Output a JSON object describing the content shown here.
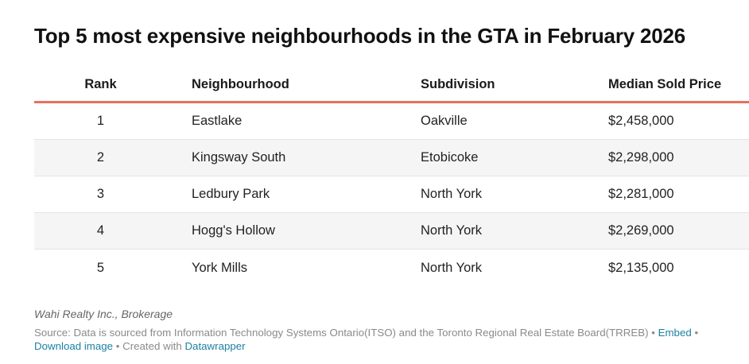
{
  "title": "Top 5 most expensive neighbourhoods in the GTA in February 2026",
  "table": {
    "headers": [
      "Rank",
      "Neighbourhood",
      "Subdivision",
      "Median Sold Price"
    ],
    "rows": [
      {
        "rank": "1",
        "neighbourhood": "Eastlake",
        "subdivision": "Oakville",
        "price": "$2,458,000"
      },
      {
        "rank": "2",
        "neighbourhood": "Kingsway South",
        "subdivision": "Etobicoke",
        "price": "$2,298,000"
      },
      {
        "rank": "3",
        "neighbourhood": "Ledbury Park",
        "subdivision": "North York",
        "price": "$2,281,000"
      },
      {
        "rank": "4",
        "neighbourhood": "Hogg's Hollow",
        "subdivision": "North York",
        "price": "$2,269,000"
      },
      {
        "rank": "5",
        "neighbourhood": "York Mills",
        "subdivision": "North York",
        "price": "$2,135,000"
      }
    ]
  },
  "byline": "Wahi Realty Inc., Brokerage",
  "footer": {
    "source": "Source: Data is sourced from Information Technology Systems Ontario(ITSO) and the Toronto Regional Real Estate Board(TRREB)",
    "separator": " • ",
    "embed": "Embed",
    "download": "Download image",
    "created_with": "Created with",
    "tool": "Datawrapper"
  },
  "colors": {
    "header_rule": "#e8705e",
    "link": "#1d81a2",
    "stripe": "#f5f5f5"
  }
}
